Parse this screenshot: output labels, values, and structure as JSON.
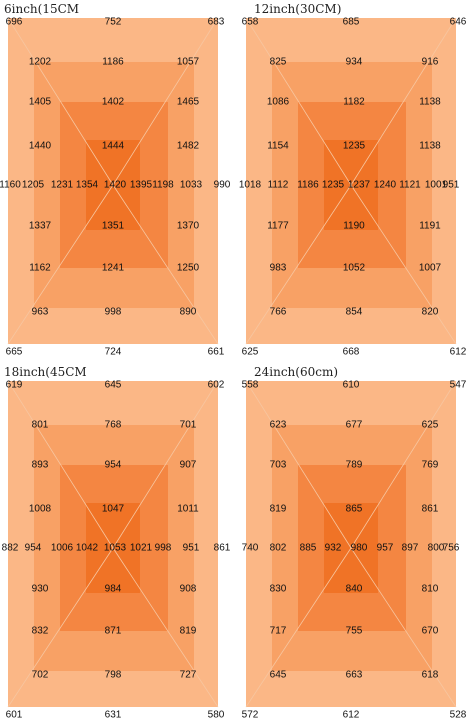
{
  "colors": {
    "outer": "#fbb786",
    "second": "#f8a165",
    "third": "#f48642",
    "center": "#f07326",
    "diagonal": "#f7c6a0"
  },
  "panels": [
    {
      "title": "6inch(15CM",
      "values": {
        "corner_tl": "696",
        "top": "752",
        "corner_tr": "683",
        "left_mid": "1160",
        "right_mid": "990",
        "corner_bl": "665",
        "bottom": "724",
        "corner_br": "661",
        "r2": [
          "1202",
          "1186",
          "1057"
        ],
        "r3": [
          "1405",
          "1402",
          "1465"
        ],
        "r4": [
          "1440",
          "1444",
          "1482"
        ],
        "mid": [
          "1205",
          "1231",
          "1354",
          "1420",
          "1395",
          "1198",
          "1033"
        ],
        "r6": [
          "1337",
          "1351",
          "1370"
        ],
        "r7": [
          "1162",
          "1241",
          "1250"
        ],
        "r8": [
          "963",
          "998",
          "890"
        ]
      }
    },
    {
      "title": "12inch(30CM)",
      "values": {
        "corner_tl": "658",
        "top": "685",
        "corner_tr": "646",
        "left_mid": "1018",
        "right_mid": "951",
        "corner_bl": "625",
        "bottom": "668",
        "corner_br": "612",
        "r2": [
          "825",
          "934",
          "916"
        ],
        "r3": [
          "1086",
          "1182",
          "1138"
        ],
        "r4": [
          "1154",
          "1235",
          "1138"
        ],
        "mid": [
          "1112",
          "1186",
          "1235",
          "1237",
          "1240",
          "1121",
          "1001"
        ],
        "r6": [
          "1177",
          "1190",
          "1191"
        ],
        "r7": [
          "983",
          "1052",
          "1007"
        ],
        "r8": [
          "766",
          "854",
          "820"
        ]
      }
    },
    {
      "title": "18inch(45CM",
      "values": {
        "corner_tl": "619",
        "top": "645",
        "corner_tr": "602",
        "left_mid": "882",
        "right_mid": "861",
        "corner_bl": "601",
        "bottom": "631",
        "corner_br": "580",
        "r2": [
          "801",
          "768",
          "701"
        ],
        "r3": [
          "893",
          "954",
          "907"
        ],
        "r4": [
          "1008",
          "1047",
          "1011"
        ],
        "mid": [
          "954",
          "1006",
          "1042",
          "1053",
          "1021",
          "998",
          "951"
        ],
        "r6": [
          "930",
          "984",
          "908"
        ],
        "r7": [
          "832",
          "871",
          "819"
        ],
        "r8": [
          "702",
          "798",
          "727"
        ]
      }
    },
    {
      "title": "24inch(60cm)",
      "values": {
        "corner_tl": "558",
        "top": "610",
        "corner_tr": "547",
        "left_mid": "740",
        "right_mid": "756",
        "corner_bl": "572",
        "bottom": "612",
        "corner_br": "528",
        "r2": [
          "623",
          "677",
          "625"
        ],
        "r3": [
          "703",
          "789",
          "769"
        ],
        "r4": [
          "819",
          "865",
          "861"
        ],
        "mid": [
          "802",
          "885",
          "932",
          "980",
          "957",
          "897",
          "800"
        ],
        "r6": [
          "830",
          "840",
          "810"
        ],
        "r7": [
          "717",
          "755",
          "670"
        ],
        "r8": [
          "645",
          "663",
          "618"
        ]
      }
    }
  ]
}
